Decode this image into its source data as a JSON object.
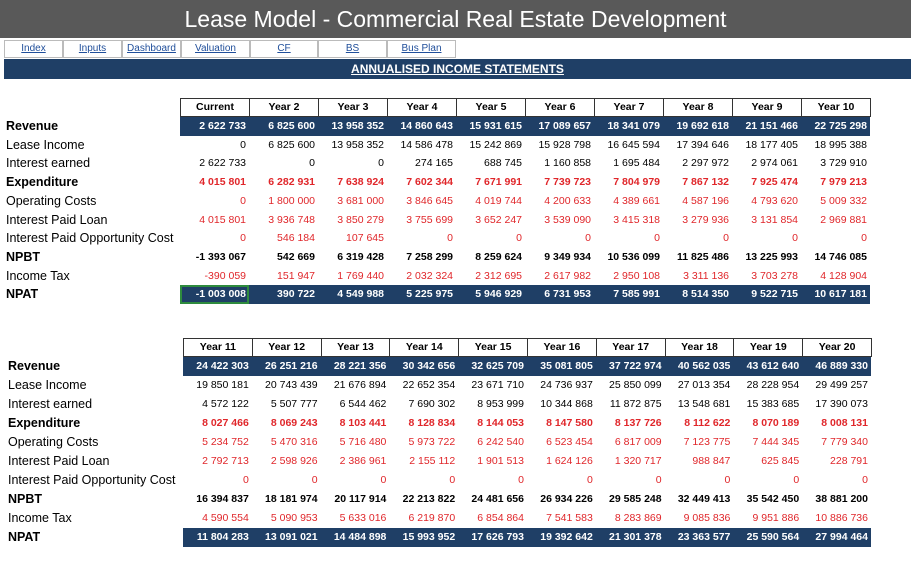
{
  "header": {
    "title": "Lease Model - Commercial Real Estate Development"
  },
  "nav": [
    "Index",
    "Inputs",
    "Dashboard",
    "Valuation",
    "CF",
    "BS",
    "Bus Plan"
  ],
  "section_title": "ANNUALISED INCOME STATEMENTS",
  "tables": [
    {
      "columns": [
        "Current",
        "Year 2",
        "Year 3",
        "Year 4",
        "Year 5",
        "Year 6",
        "Year 7",
        "Year 8",
        "Year 9",
        "Year 10"
      ],
      "rows": [
        {
          "label": "Revenue",
          "values": [
            "2 622 733",
            "6 825 600",
            "13 958 352",
            "14 860 643",
            "15 931 615",
            "17 089 657",
            "18 341 079",
            "19 692 618",
            "21 151 466",
            "22 725 298"
          ]
        },
        {
          "label": "Lease Income",
          "values": [
            "0",
            "6 825 600",
            "13 958 352",
            "14 586 478",
            "15 242 869",
            "15 928 798",
            "16 645 594",
            "17 394 646",
            "18 177 405",
            "18 995 388"
          ]
        },
        {
          "label": "Interest earned",
          "values": [
            "2 622 733",
            "0",
            "0",
            "274 165",
            "688 745",
            "1 160 858",
            "1 695 484",
            "2 297 972",
            "2 974 061",
            "3 729 910"
          ]
        },
        {
          "label": "Expenditure",
          "values": [
            "4 015 801",
            "6 282 931",
            "7 638 924",
            "7 602 344",
            "7 671 991",
            "7 739 723",
            "7 804 979",
            "7 867 132",
            "7 925 474",
            "7 979 213"
          ]
        },
        {
          "label": "Operating Costs",
          "values": [
            "0",
            "1 800 000",
            "3 681 000",
            "3 846 645",
            "4 019 744",
            "4 200 633",
            "4 389 661",
            "4 587 196",
            "4 793 620",
            "5 009 332"
          ]
        },
        {
          "label": "Interest Paid Loan",
          "values": [
            "4 015 801",
            "3 936 748",
            "3 850 279",
            "3 755 699",
            "3 652 247",
            "3 539 090",
            "3 415 318",
            "3 279 936",
            "3 131 854",
            "2 969 881"
          ]
        },
        {
          "label": "Interest Paid Opportunity Cost",
          "values": [
            "0",
            "546 184",
            "107 645",
            "0",
            "0",
            "0",
            "0",
            "0",
            "0",
            "0"
          ]
        },
        {
          "label": "NPBT",
          "values": [
            "-1 393 067",
            "542 669",
            "6 319 428",
            "7 258 299",
            "8 259 624",
            "9 349 934",
            "10 536 099",
            "11 825 486",
            "13 225 993",
            "14 746 085"
          ]
        },
        {
          "label": "Income Tax",
          "values": [
            "-390 059",
            "151 947",
            "1 769 440",
            "2 032 324",
            "2 312 695",
            "2 617 982",
            "2 950 108",
            "3 311 136",
            "3 703 278",
            "4 128 904"
          ]
        },
        {
          "label": "NPAT",
          "values": [
            "-1 003 008",
            "390 722",
            "4 549 988",
            "5 225 975",
            "5 946 929",
            "6 731 953",
            "7 585 991",
            "8 514 350",
            "9 522 715",
            "10 617 181"
          ]
        }
      ]
    },
    {
      "columns": [
        "Year 11",
        "Year 12",
        "Year 13",
        "Year 14",
        "Year 15",
        "Year 16",
        "Year 17",
        "Year 18",
        "Year 19",
        "Year 20"
      ],
      "rows": [
        {
          "label": "Revenue",
          "values": [
            "24 422 303",
            "26 251 216",
            "28 221 356",
            "30 342 656",
            "32 625 709",
            "35 081 805",
            "37 722 974",
            "40 562 035",
            "43 612 640",
            "46 889 330"
          ]
        },
        {
          "label": "Lease Income",
          "values": [
            "19 850 181",
            "20 743 439",
            "21 676 894",
            "22 652 354",
            "23 671 710",
            "24 736 937",
            "25 850 099",
            "27 013 354",
            "28 228 954",
            "29 499 257"
          ]
        },
        {
          "label": "Interest earned",
          "values": [
            "4 572 122",
            "5 507 777",
            "6 544 462",
            "7 690 302",
            "8 953 999",
            "10 344 868",
            "11 872 875",
            "13 548 681",
            "15 383 685",
            "17 390 073"
          ]
        },
        {
          "label": "Expenditure",
          "values": [
            "8 027 466",
            "8 069 243",
            "8 103 441",
            "8 128 834",
            "8 144 053",
            "8 147 580",
            "8 137 726",
            "8 112 622",
            "8 070 189",
            "8 008 131"
          ]
        },
        {
          "label": "Operating Costs",
          "values": [
            "5 234 752",
            "5 470 316",
            "5 716 480",
            "5 973 722",
            "6 242 540",
            "6 523 454",
            "6 817 009",
            "7 123 775",
            "7 444 345",
            "7 779 340"
          ]
        },
        {
          "label": "Interest Paid Loan",
          "values": [
            "2 792 713",
            "2 598 926",
            "2 386 961",
            "2 155 112",
            "1 901 513",
            "1 624 126",
            "1 320 717",
            "988 847",
            "625 845",
            "228 791"
          ]
        },
        {
          "label": "Interest Paid Opportunity Cost",
          "values": [
            "0",
            "0",
            "0",
            "0",
            "0",
            "0",
            "0",
            "0",
            "0",
            "0"
          ]
        },
        {
          "label": "NPBT",
          "values": [
            "16 394 837",
            "18 181 974",
            "20 117 914",
            "22 213 822",
            "24 481 656",
            "26 934 226",
            "29 585 248",
            "32 449 413",
            "35 542 450",
            "38 881 200"
          ]
        },
        {
          "label": "Income Tax",
          "values": [
            "4 590 554",
            "5 090 953",
            "5 633 016",
            "6 219 870",
            "6 854 864",
            "7 541 583",
            "8 283 869",
            "9 085 836",
            "9 951 886",
            "10 886 736"
          ]
        },
        {
          "label": "NPAT",
          "values": [
            "11 804 283",
            "13 091 021",
            "14 484 898",
            "15 993 952",
            "17 626 793",
            "19 392 642",
            "21 301 378",
            "23 363 577",
            "25 590 564",
            "27 994 464"
          ]
        }
      ]
    }
  ]
}
